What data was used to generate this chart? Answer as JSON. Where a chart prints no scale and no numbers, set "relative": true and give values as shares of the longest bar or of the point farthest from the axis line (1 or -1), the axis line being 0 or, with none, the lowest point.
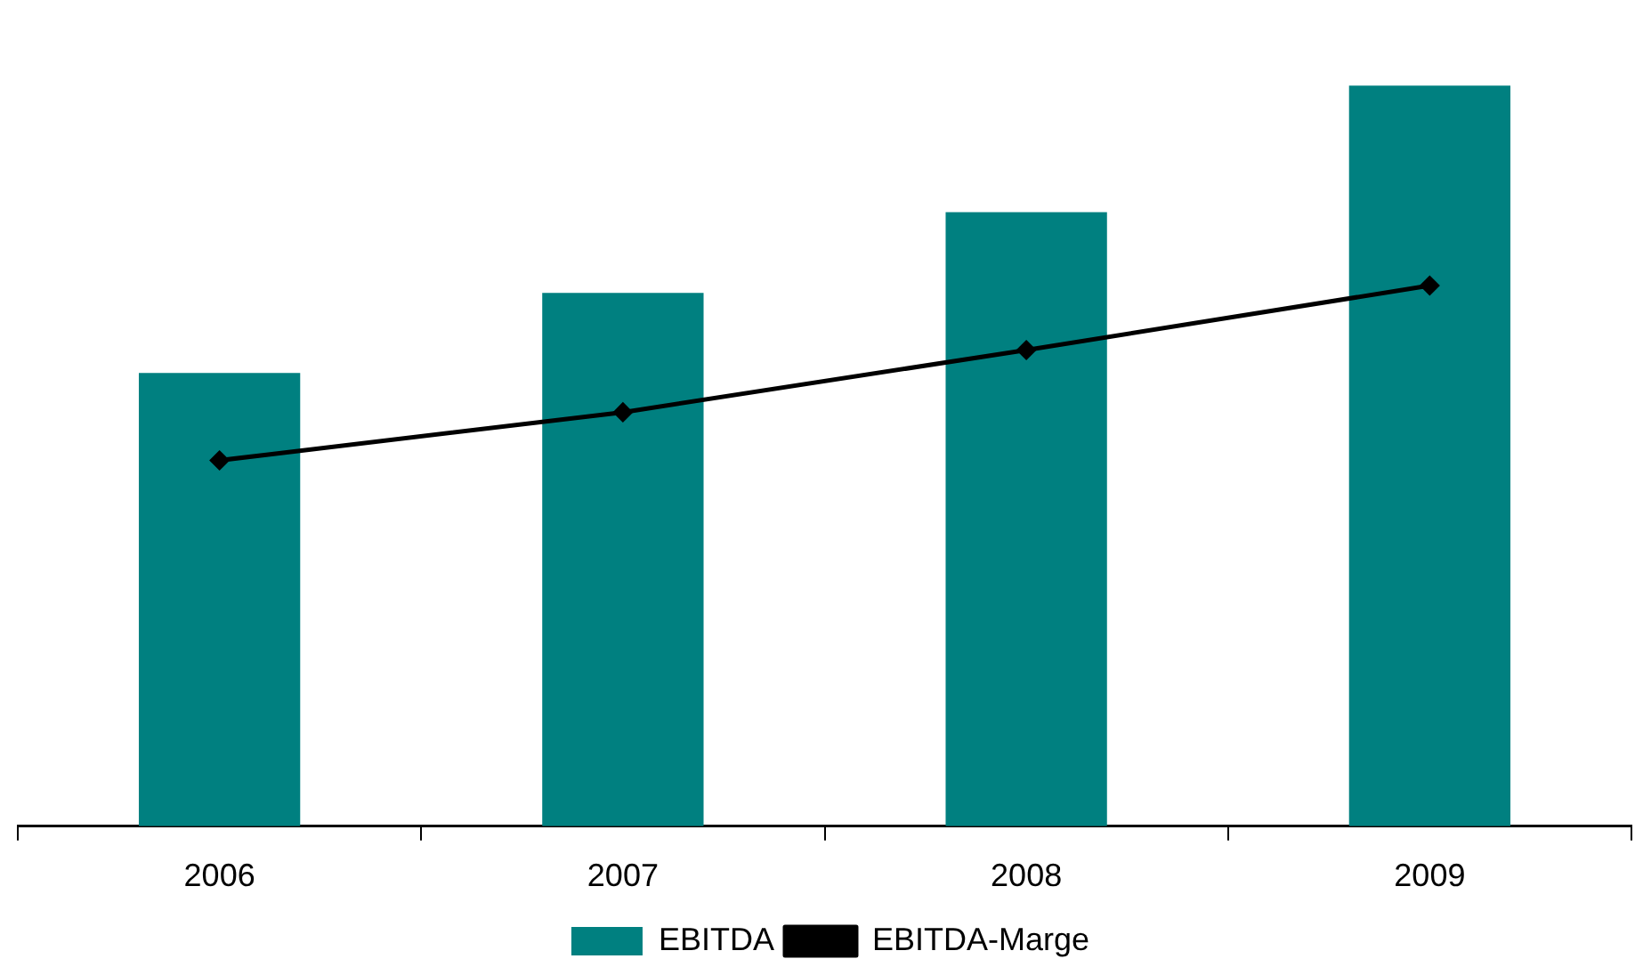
{
  "chart_data": {
    "type": "bar",
    "relative": true,
    "categories": [
      "2006",
      "2007",
      "2008",
      "2009"
    ],
    "series": [
      {
        "name": "EBITDA",
        "color": "#008080",
        "values": [
          0.612,
          0.72,
          0.829,
          1
        ]
      },
      {
        "name": "EBITDA-Marge",
        "type": "line",
        "color": "#000000",
        "values": [
          0.494,
          0.559,
          0.643,
          0.73
        ]
      }
    ],
    "legend": "bottom",
    "marker": "diamond",
    "grid": false
  }
}
